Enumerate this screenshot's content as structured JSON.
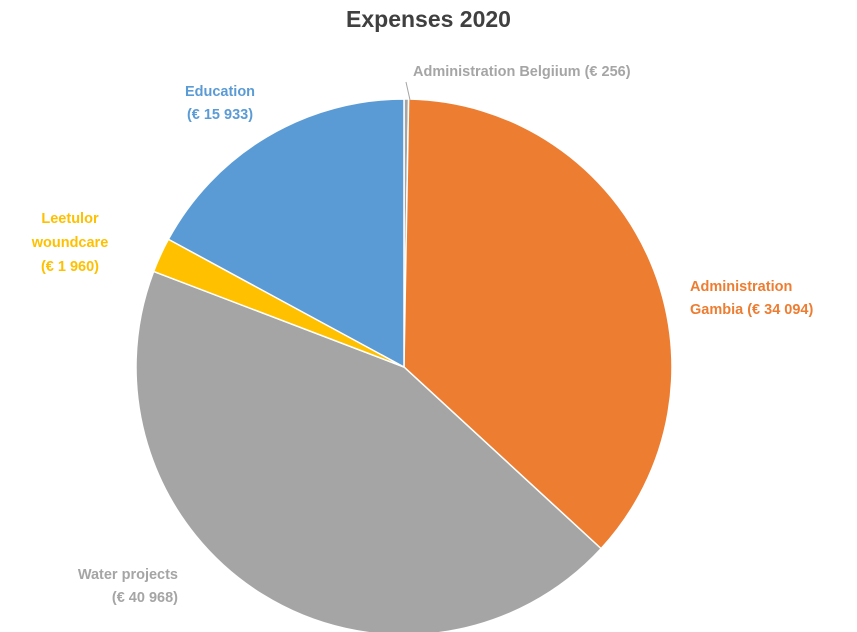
{
  "chart_data": {
    "type": "pie",
    "title": "Expenses 2020",
    "start_angle_deg": 0,
    "direction": "clockwise",
    "legend": "none",
    "slices": [
      {
        "name": "Administration Belgiium",
        "value": 256,
        "display_value": "€ 256",
        "color": "#A5A5A5",
        "label_lines": [
          "Administration Belgiium (€ 256)"
        ]
      },
      {
        "name": "Administration Gambia",
        "value": 34094,
        "display_value": "€ 34 094",
        "color": "#ED7D31",
        "label_lines": [
          "Administration",
          "Gambia (€ 34 094)"
        ]
      },
      {
        "name": "Water projects",
        "value": 40968,
        "display_value": "€ 40 968",
        "color": "#A5A5A5",
        "label_lines": [
          "Water projects",
          "(€ 40 968)"
        ]
      },
      {
        "name": "Leetulor woundcare",
        "value": 1960,
        "display_value": "€ 1 960",
        "color": "#FFC000",
        "label_lines": [
          "Leetulor",
          "woundcare",
          "(€ 1 960)"
        ]
      },
      {
        "name": "Education",
        "value": 15933,
        "display_value": "€ 15 933",
        "color": "#5B9BD5",
        "label_lines": [
          "Education",
          "(€ 15 933)"
        ]
      }
    ]
  }
}
